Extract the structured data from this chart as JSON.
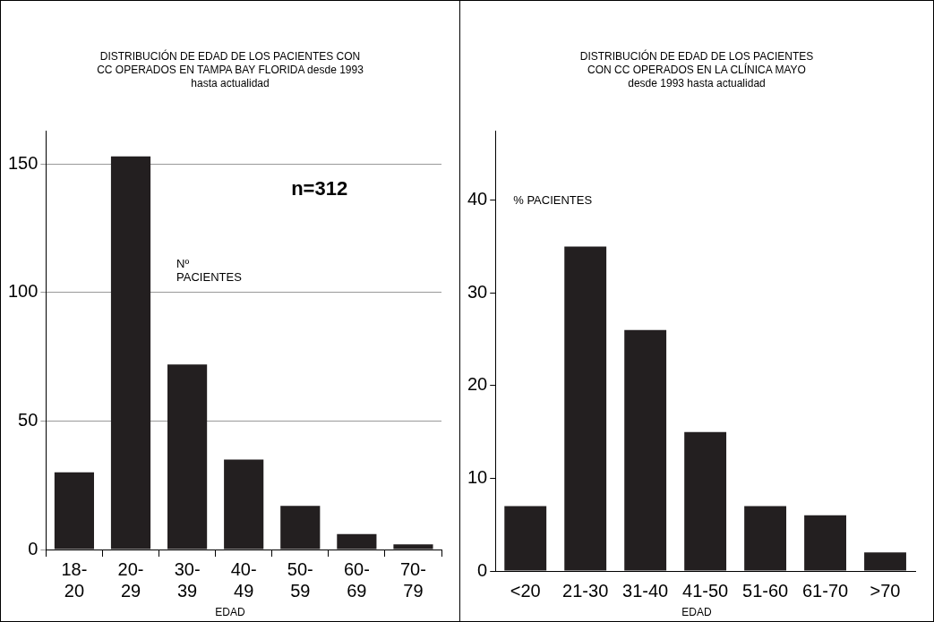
{
  "chart_data": [
    {
      "type": "bar",
      "title": "DISTRIBUCIÓN DE EDAD DE LOS PACIENTES CON\nCC OPERADOS EN TAMPA BAY FLORIDA desde 1993\nhasta actualidad",
      "xlabel": "EDAD",
      "ylabel": "Nº\nPACIENTES",
      "categories": [
        "18-20",
        "20-29",
        "30-39",
        "40-49",
        "50-59",
        "60-69",
        "70-79"
      ],
      "values": [
        30,
        153,
        72,
        35,
        17,
        6,
        2
      ],
      "color": "#231f20",
      "ylim": [
        0,
        163
      ],
      "yticks": [
        0,
        50,
        100,
        150
      ],
      "grid": "y",
      "annotations": [
        "n=312"
      ]
    },
    {
      "type": "bar",
      "title": "DISTRIBUCIÓN DE EDAD DE LOS PACIENTES\nCON CC OPERADOS EN LA CLÍNICA MAYO\ndesde 1993 hasta actualidad",
      "xlabel": "EDAD",
      "ylabel": "% PACIENTES",
      "categories": [
        "<20",
        "21-30",
        "31-40",
        "41-50",
        "51-60",
        "61-70",
        ">70"
      ],
      "values": [
        7,
        35,
        26,
        15,
        7,
        6,
        2
      ],
      "color": "#231f20",
      "ylim": [
        0,
        47.5
      ],
      "yticks": [
        0,
        10,
        20,
        30,
        40
      ],
      "grid": false
    }
  ]
}
